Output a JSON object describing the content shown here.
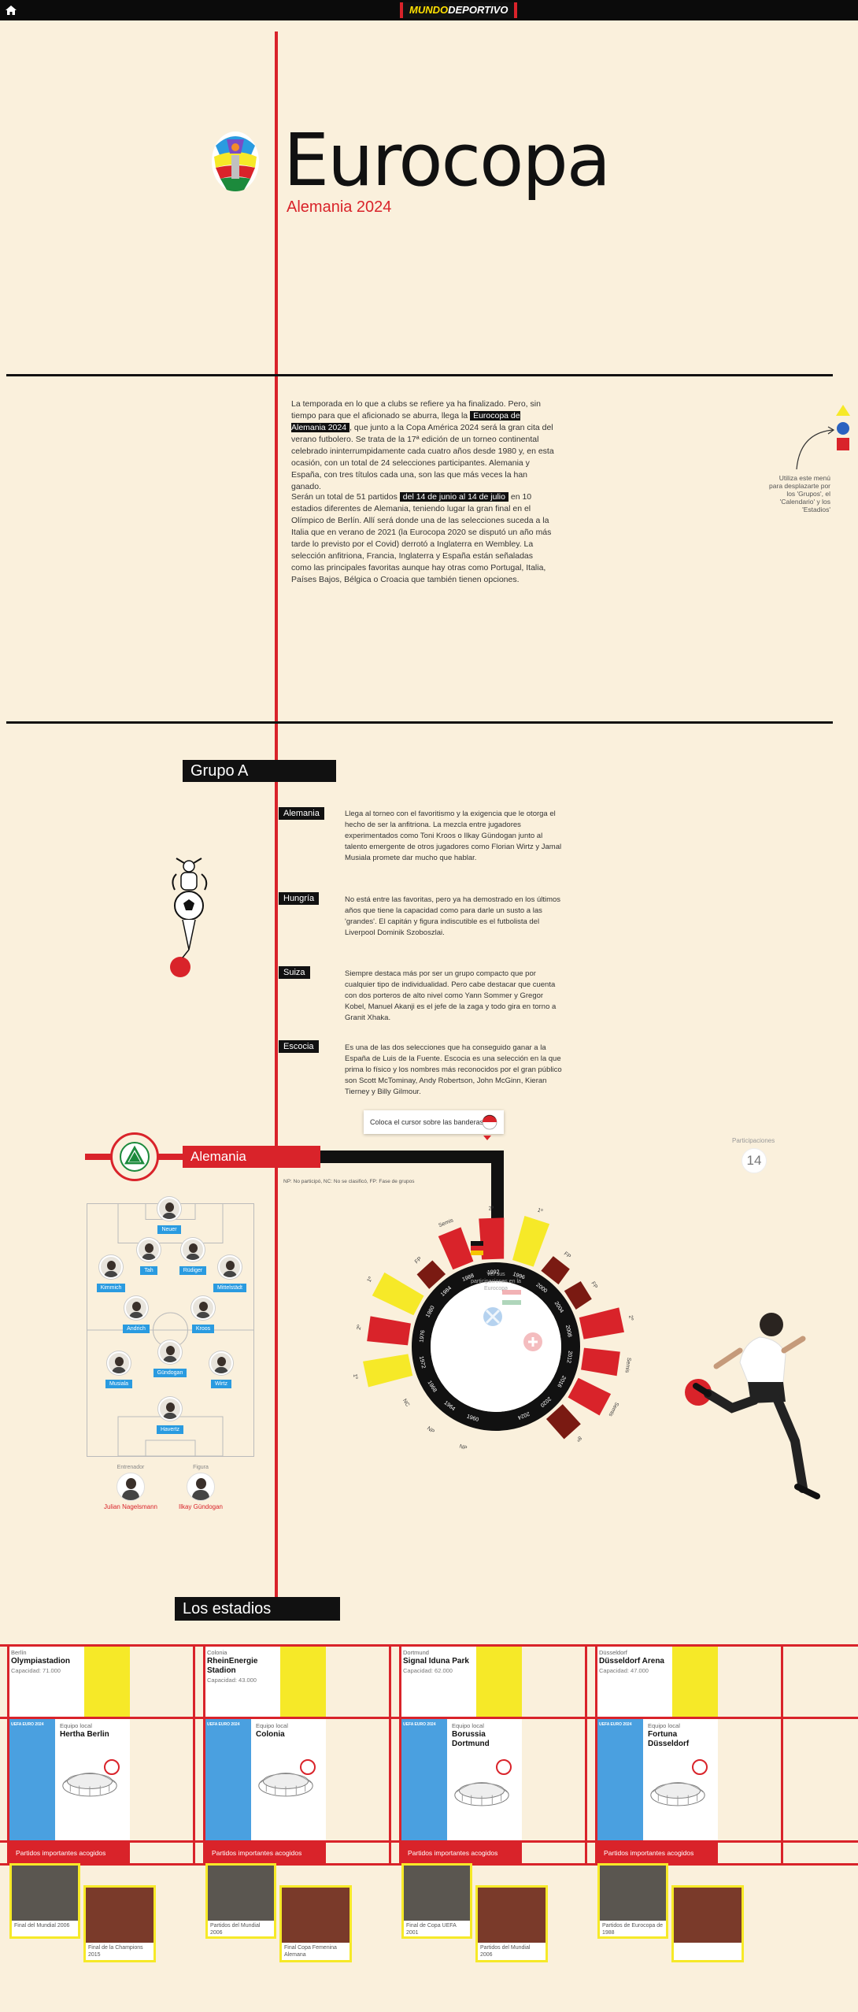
{
  "topbar": {
    "brand_a": "MUNDO",
    "brand_b": "DEPORTIVO",
    "home_icon": "home-icon"
  },
  "hero": {
    "title": "Eurocopa",
    "subtitle": "Alemania 2024"
  },
  "intro": {
    "p1_a": "La temporada en lo que a clubs se refiere ya ha finalizado. Pero, sin tiempo para que el aficionado se aburra, llega la ",
    "p1_hl": "Eurocopa de Alemania 2024",
    "p1_b": ", que junto a la Copa América 2024 será la gran cita del verano futbolero. Se trata de la 17ª edición de un torneo continental celebrado ininterrumpidamente cada cuatro años desde 1980 y, en esta ocasión, con un total de 24 selecciones participantes. Alemania y España, con tres títulos cada una, son las que más veces la han ganado.",
    "p2_a": "Serán un total de 51 partidos ",
    "p2_hl": "del 14 de junio al 14 de julio",
    "p2_b": " en 10 estadios diferentes de Alemania, teniendo lugar la gran final en el Olímpico de Berlín. Allí será donde una de las selecciones suceda a la Italia que en verano de 2021 (la Eurocopa 2020 se disputó un año más tarde lo previsto por el Covid) derrotó a Inglaterra en Wembley. La selección anfitriona, Francia, Inglaterra y España están señaladas como las principales favoritas aunque hay otras como Portugal, Italia, Países Bajos, Bélgica o Croacia que también tienen opciones."
  },
  "menu_hint": "Utiliza este menú para desplazarte por los 'Grupos', el 'Calendario' y los 'Estadios'",
  "group": {
    "title": "Grupo A",
    "teams": [
      {
        "name": "Alemania",
        "desc": "Llega al torneo con el favoritismo y la exigencia que le otorga el hecho de ser la anfitriona. La mezcla entre jugadores experimentados como Toni Kroos o Ilkay Gündogan junto al talento emergente de otros jugadores como Florian Wirtz y Jamal Musiala promete dar mucho que hablar."
      },
      {
        "name": "Hungría",
        "desc": "No está entre las favoritas, pero ya ha demostrado en los últimos años que tiene la capacidad como para darle un susto a las 'grandes'. El capitán y figura indiscutible es el futbolista del Liverpool Dominik Szoboszlai."
      },
      {
        "name": "Suiza",
        "desc": "Siempre destaca más por ser un grupo compacto que por cualquier tipo de individualidad. Pero cabe destacar que cuenta con dos porteros de alto nivel como Yann Sommer y Gregor Kobel, Manuel Akanji es el jefe de la zaga y todo gira en torno a Granit Xhaka."
      },
      {
        "name": "Escocia",
        "desc": "Es una de las dos selecciones que ha conseguido ganar a la España de Luis de la Fuente. Escocia es una selección en la que prima lo físico y los nombres más reconocidos por el gran público son Scott McTominay, Andy Robertson, John McGinn, Kieran Tierney y Billy Gilmour."
      }
    ],
    "flag_hint": "Coloca el cursor sobre las banderas"
  },
  "participations": {
    "label": "Participaciones",
    "value": "14"
  },
  "team_detail": {
    "name": "Alemania",
    "legend": "NP: No participó, NC: No se clasificó, FP: Fase de grupos",
    "lineup": [
      "Neuer",
      "Tah",
      "Rüdiger",
      "Kimmich",
      "Mittelstädt",
      "Andrich",
      "Kroos",
      "Gündogan",
      "Musiala",
      "Wirtz",
      "Havertz"
    ],
    "coach_role": "Entrenador",
    "coach_name": "Julian Nagelsmann",
    "star_role": "Figura",
    "star_name": "Ilkay Gündogan"
  },
  "chart_data": {
    "type": "radial-bar",
    "center_text": "Ver sus participaciones en la Eurocopa",
    "categories": [
      "1960",
      "1964",
      "1968",
      "1972",
      "1976",
      "1980",
      "1984",
      "1988",
      "1992",
      "1996",
      "2000",
      "2004",
      "2008",
      "2012",
      "2016",
      "2020",
      "2024"
    ],
    "results": [
      "NP",
      "NP",
      "NC",
      "1º",
      "2º",
      "1º",
      "FP",
      "Semis",
      "2º",
      "1º",
      "FP",
      "FP",
      "2º",
      "Semis",
      "Semis",
      "8º",
      ""
    ]
  },
  "stadiums": {
    "title": "Los estadios",
    "team_label": "Equipo local",
    "matches_label": "Partidos importantes acogidos",
    "euro_mini": "UEFA EURO 2024",
    "items": [
      {
        "city": "Berlín",
        "name": "Olympiastadion",
        "capacity": "Capacidad: 71.000",
        "team": "Hertha Berlin",
        "m1": "Final del Mundial 2006",
        "m2": "Final de la Champions 2015"
      },
      {
        "city": "Colonia",
        "name": "RheinEnergie Stadion",
        "capacity": "Capacidad: 43.000",
        "team": "Colonia",
        "m1": "Partidos del Mundial 2006",
        "m2": "Final Copa Femenina Alemana"
      },
      {
        "city": "Dortmund",
        "name": "Signal Iduna Park",
        "capacity": "Capacidad: 62.000",
        "team": "Borussia Dortmund",
        "m1": "Final de Copa UEFA 2001",
        "m2": "Partidos del Mundial 2006"
      },
      {
        "city": "Düsseldorf",
        "name": "Düsseldorf Arena",
        "capacity": "Capacidad: 47.000",
        "team": "Fortuna Düsseldorf",
        "m1": "Partidos de Eurocopa de 1988",
        "m2": ""
      }
    ]
  },
  "colors": {
    "red": "#d9232a",
    "yellow": "#f6e928",
    "blue": "#4aa0e0",
    "cream": "#faf0dc",
    "black": "#111111"
  }
}
